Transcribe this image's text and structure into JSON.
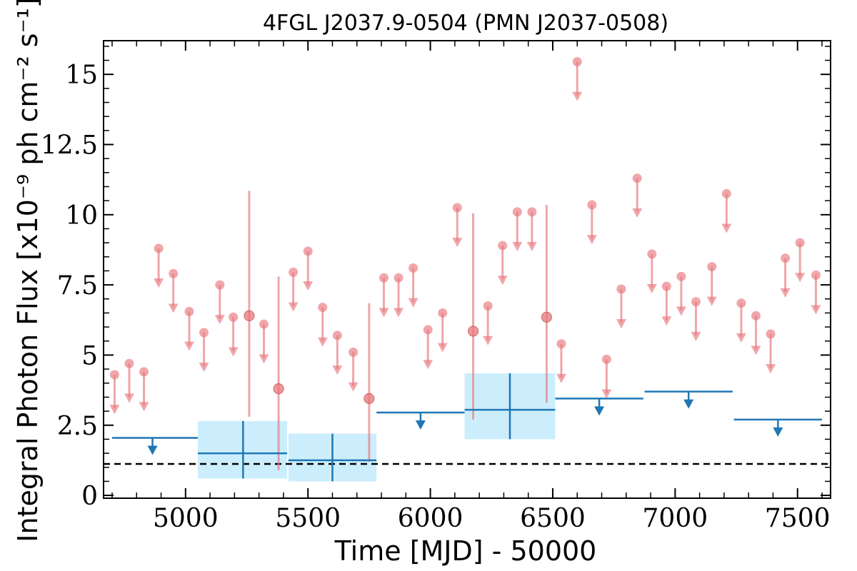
{
  "chart_data": {
    "type": "scatter",
    "title": "4FGL J2037.9-0504 (PMN J2037-0508)",
    "xlabel": "Time [MJD] - 50000",
    "ylabel": "Integral Photon Flux [x10⁻⁹ ph cm⁻² s⁻¹]",
    "xlim": [
      4665,
      7635
    ],
    "ylim": [
      -0.1,
      16.2
    ],
    "x_ticks": [
      5000,
      5500,
      6000,
      6500,
      7000,
      7500
    ],
    "x_tick_labels": [
      "5000",
      "5500",
      "6000",
      "6500",
      "7000",
      "7500"
    ],
    "y_ticks": [
      0,
      2.5,
      5,
      7.5,
      10,
      12.5,
      15
    ],
    "y_tick_labels": [
      "0",
      "2.5",
      "5",
      "7.5",
      "10",
      "12.5",
      "15"
    ],
    "grid": false,
    "reference_level": 1.12,
    "colors": {
      "short_bins": "#e8777c",
      "long_bins": "#1f77b4",
      "long_bins_band": "#cceefc",
      "reference": "#000000"
    },
    "series": [
      {
        "bin": "short",
        "upper_limits": [
          {
            "x": 4710,
            "y": 4.3
          },
          {
            "x": 4770,
            "y": 4.7
          },
          {
            "x": 4830,
            "y": 4.4
          },
          {
            "x": 4890,
            "y": 8.8
          },
          {
            "x": 4950,
            "y": 7.9
          },
          {
            "x": 5015,
            "y": 6.55
          },
          {
            "x": 5075,
            "y": 5.8
          },
          {
            "x": 5140,
            "y": 7.5
          },
          {
            "x": 5195,
            "y": 6.35
          },
          {
            "x": 5320,
            "y": 6.1
          },
          {
            "x": 5440,
            "y": 7.95
          },
          {
            "x": 5500,
            "y": 8.7
          },
          {
            "x": 5560,
            "y": 6.7
          },
          {
            "x": 5620,
            "y": 5.7
          },
          {
            "x": 5685,
            "y": 5.1
          },
          {
            "x": 5810,
            "y": 7.75
          },
          {
            "x": 5870,
            "y": 7.75
          },
          {
            "x": 5930,
            "y": 8.1
          },
          {
            "x": 5990,
            "y": 5.9
          },
          {
            "x": 6050,
            "y": 6.5
          },
          {
            "x": 6110,
            "y": 10.25
          },
          {
            "x": 6235,
            "y": 6.75
          },
          {
            "x": 6295,
            "y": 8.9
          },
          {
            "x": 6355,
            "y": 10.1
          },
          {
            "x": 6415,
            "y": 10.1
          },
          {
            "x": 6535,
            "y": 5.4
          },
          {
            "x": 6600,
            "y": 15.45
          },
          {
            "x": 6660,
            "y": 10.35
          },
          {
            "x": 6720,
            "y": 4.85
          },
          {
            "x": 6780,
            "y": 7.35
          },
          {
            "x": 6845,
            "y": 11.3
          },
          {
            "x": 6905,
            "y": 8.6
          },
          {
            "x": 6965,
            "y": 7.45
          },
          {
            "x": 7025,
            "y": 7.8
          },
          {
            "x": 7085,
            "y": 6.9
          },
          {
            "x": 7150,
            "y": 8.15
          },
          {
            "x": 7210,
            "y": 10.75
          },
          {
            "x": 7270,
            "y": 6.85
          },
          {
            "x": 7330,
            "y": 6.4
          },
          {
            "x": 7390,
            "y": 5.75
          },
          {
            "x": 7450,
            "y": 8.45
          },
          {
            "x": 7510,
            "y": 9.0
          },
          {
            "x": 7575,
            "y": 7.85
          }
        ],
        "detections": [
          {
            "x": 5260,
            "y": 6.4,
            "y_low": 2.8,
            "y_high": 10.85
          },
          {
            "x": 5380,
            "y": 3.8,
            "y_low": 0.9,
            "y_high": 7.8
          },
          {
            "x": 5750,
            "y": 3.45,
            "y_low": 1.2,
            "y_high": 6.85
          },
          {
            "x": 6175,
            "y": 5.85,
            "y_low": 2.7,
            "y_high": 10.05
          },
          {
            "x": 6475,
            "y": 6.35,
            "y_low": 3.3,
            "y_high": 10.35
          }
        ]
      },
      {
        "bin": "long",
        "upper_limits": [
          {
            "x": 4865,
            "x_low": 4700,
            "x_high": 5050,
            "y": 2.05
          },
          {
            "x": 5960,
            "x_low": 5780,
            "x_high": 6140,
            "y": 2.95
          },
          {
            "x": 6690,
            "x_low": 6510,
            "x_high": 6870,
            "y": 3.45
          },
          {
            "x": 7055,
            "x_low": 6875,
            "x_high": 7235,
            "y": 3.7
          },
          {
            "x": 7420,
            "x_low": 7240,
            "x_high": 7600,
            "y": 2.7
          }
        ],
        "detections": [
          {
            "x": 5235,
            "x_low": 5050,
            "x_high": 5415,
            "y": 1.5,
            "y_low": 0.6,
            "y_high": 2.65
          },
          {
            "x": 5600,
            "x_low": 5420,
            "x_high": 5780,
            "y": 1.25,
            "y_low": 0.5,
            "y_high": 2.2
          },
          {
            "x": 6325,
            "x_low": 6140,
            "x_high": 6510,
            "y": 3.05,
            "y_low": 2.0,
            "y_high": 4.35
          }
        ]
      }
    ]
  }
}
